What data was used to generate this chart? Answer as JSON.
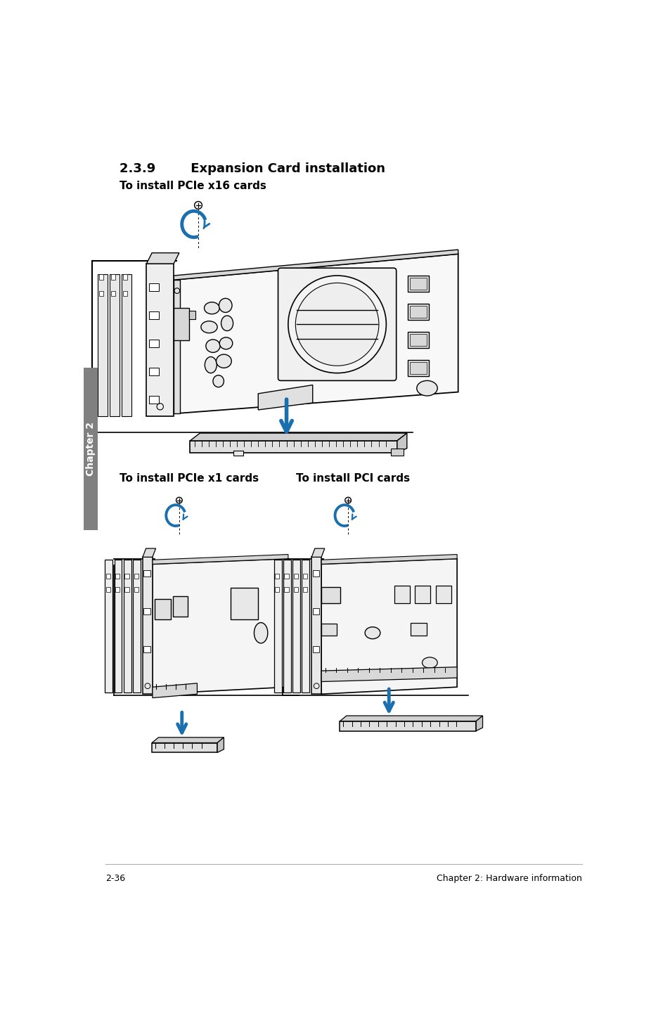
{
  "title_section": "2.3.9        Expansion Card installation",
  "subtitle1": "To install PCIe x16 cards",
  "subtitle2": "To install PCIe x1 cards",
  "subtitle3": "To install PCI cards",
  "footer_left": "2-36",
  "footer_right": "Chapter 2: Hardware information",
  "page_bg": "#ffffff",
  "text_color": "#000000",
  "title_fontsize": 13,
  "subtitle_fontsize": 11,
  "footer_fontsize": 9,
  "chapter_tab_text": "Chapter 2",
  "chapter_tab_bg": "#808080",
  "chapter_tab_text_color": "#ffffff",
  "blue_color": "#1a6faf",
  "black": "#000000",
  "gray_light": "#e8e8e8",
  "gray_mid": "#c0c0c0",
  "gray_dark": "#888888"
}
